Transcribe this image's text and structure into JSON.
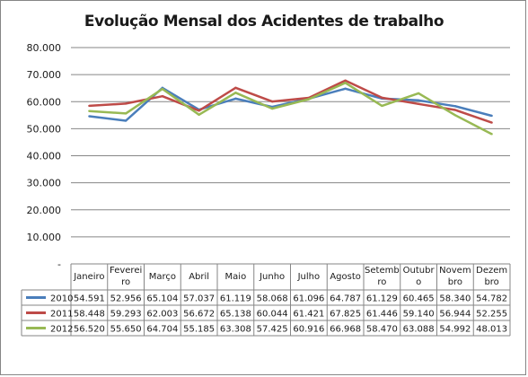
{
  "chart_data": {
    "type": "line",
    "title": "Evolução Mensal dos Acidentes de trabalho",
    "categories": [
      [
        "Janeiro"
      ],
      [
        "Feverei",
        "ro"
      ],
      [
        "Março"
      ],
      [
        "Abril"
      ],
      [
        "Maio"
      ],
      [
        "Junho"
      ],
      [
        "Julho"
      ],
      [
        "Agosto"
      ],
      [
        "Setemb",
        "ro"
      ],
      [
        "Outubr",
        "o"
      ],
      [
        "Novem",
        "bro"
      ],
      [
        "Dezem",
        "bro"
      ]
    ],
    "y_ticks": [
      "80.000",
      "70.000",
      "60.000",
      "50.000",
      "40.000",
      "30.000",
      "20.000",
      "10.000",
      "-"
    ],
    "ylim": [
      0,
      80000
    ],
    "grid": true,
    "legend": "data-table",
    "series": [
      {
        "name": "2010",
        "color": "#4a7ebb",
        "values": [
          54591,
          52956,
          65104,
          57037,
          61119,
          58068,
          61096,
          64787,
          61129,
          60465,
          58340,
          54782
        ],
        "labels": [
          "54.591",
          "52.956",
          "65.104",
          "57.037",
          "61.119",
          "58.068",
          "61.096",
          "64.787",
          "61.129",
          "60.465",
          "58.340",
          "54.782"
        ]
      },
      {
        "name": "2011",
        "color": "#be4b48",
        "values": [
          58448,
          59293,
          62003,
          56672,
          65138,
          60044,
          61421,
          67825,
          61446,
          59140,
          56944,
          52255
        ],
        "labels": [
          "58.448",
          "59.293",
          "62.003",
          "56.672",
          "65.138",
          "60.044",
          "61.421",
          "67.825",
          "61.446",
          "59.140",
          "56.944",
          "52.255"
        ]
      },
      {
        "name": "2012",
        "color": "#98b954",
        "values": [
          56520,
          55650,
          64704,
          55185,
          63308,
          57425,
          60916,
          66968,
          58470,
          63088,
          54992,
          48013
        ],
        "labels": [
          "56.520",
          "55.650",
          "64.704",
          "55.185",
          "63.308",
          "57.425",
          "60.916",
          "66.968",
          "58.470",
          "63.088",
          "54.992",
          "48.013"
        ]
      }
    ]
  }
}
